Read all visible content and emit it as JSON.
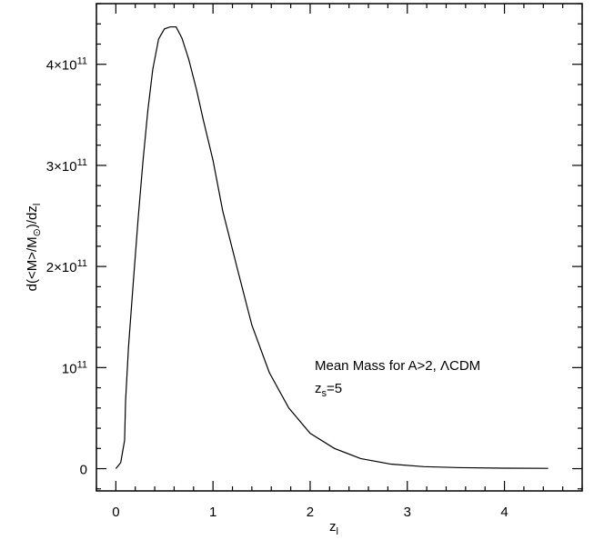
{
  "chart_data": {
    "type": "line",
    "title": "",
    "xlabel_base": "z",
    "xlabel_sub": "l",
    "ylabel_parts": {
      "prefix": "d(<M>/M",
      "sun_sub": "⊙",
      "middle": ")/dz",
      "end_sub": "l"
    },
    "xlim": [
      -0.2,
      4.8
    ],
    "ylim": [
      -22000000000.0,
      460000000000.0
    ],
    "x_ticks": [
      {
        "value": 0,
        "label": "0"
      },
      {
        "value": 1,
        "label": "1"
      },
      {
        "value": 2,
        "label": "2"
      },
      {
        "value": 3,
        "label": "3"
      },
      {
        "value": 4,
        "label": "4"
      }
    ],
    "y_ticks": [
      {
        "value": 0,
        "base": "0",
        "exp": ""
      },
      {
        "value": 100000000000.0,
        "base": "10",
        "exp": "11"
      },
      {
        "value": 200000000000.0,
        "base": "2×10",
        "exp": "11"
      },
      {
        "value": 300000000000.0,
        "base": "3×10",
        "exp": "11"
      },
      {
        "value": 400000000000.0,
        "base": "4×10",
        "exp": "11"
      }
    ],
    "annotation": {
      "line1": "Mean Mass for A>2, ΛCDM",
      "line2_base": "z",
      "line2_sub": "s",
      "line2_rest": "=5"
    },
    "grid": false,
    "series": [
      {
        "x": [
          0.0,
          0.05,
          0.09,
          0.1,
          0.13,
          0.18,
          0.23,
          0.28,
          0.33,
          0.38,
          0.44,
          0.5,
          0.56,
          0.62,
          0.68,
          0.75,
          0.83,
          0.9,
          1.0,
          1.1,
          1.25,
          1.4,
          1.58,
          1.78,
          2.0,
          2.25,
          2.52,
          2.83,
          3.17,
          3.55,
          4.0,
          4.45
        ],
        "y": [
          0.0,
          6000000000.0,
          28000000000.0,
          67000000000.0,
          120000000000.0,
          185000000000.0,
          248000000000.0,
          305000000000.0,
          355000000000.0,
          395000000000.0,
          425000000000.0,
          435000000000.0,
          437000000000.0,
          437000000000.0,
          426000000000.0,
          405000000000.0,
          375000000000.0,
          345000000000.0,
          305000000000.0,
          255000000000.0,
          198000000000.0,
          142000000000.0,
          95000000000.0,
          60000000000.0,
          35000000000.0,
          20000000000.0,
          10000000000.0,
          4500000000.0,
          2000000000.0,
          1000000000.0,
          500000000.0,
          300000000.0
        ]
      }
    ]
  }
}
